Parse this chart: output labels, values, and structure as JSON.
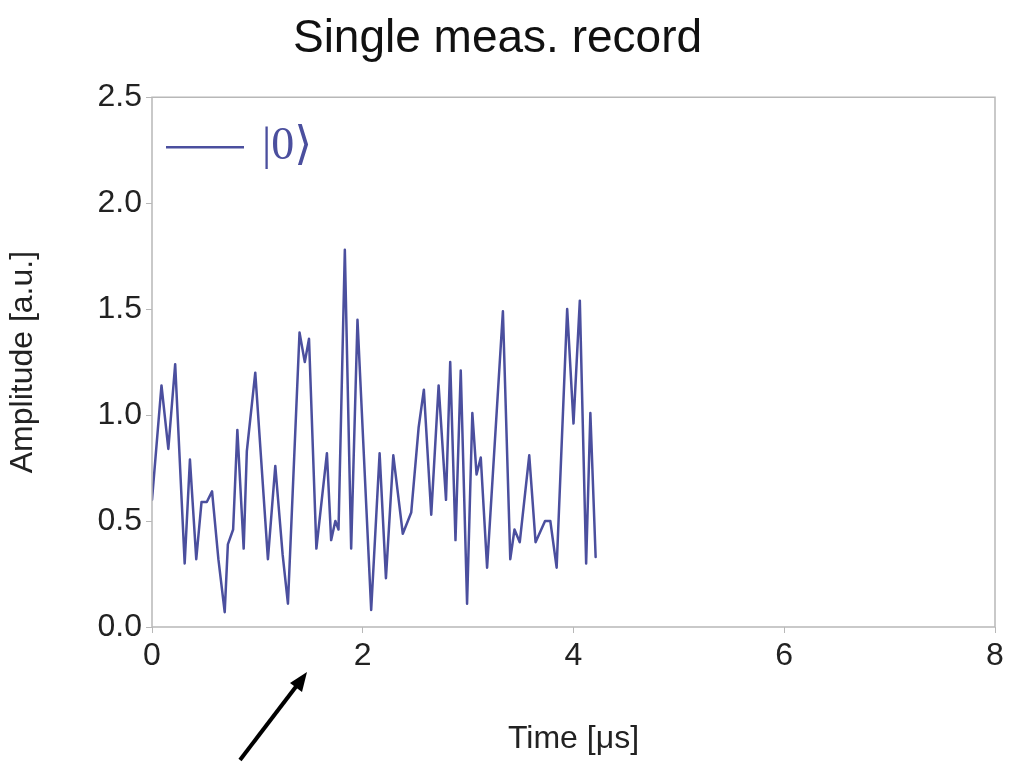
{
  "chart_data": {
    "type": "line",
    "title": "Single meas. record",
    "xlabel": "Time [μs]",
    "ylabel": "Amplitude [a.u.]",
    "xlim": [
      0,
      8
    ],
    "xticks": [
      0,
      2,
      4,
      6,
      8
    ],
    "ylim": [
      0,
      2.5
    ],
    "yticks": [
      {
        "value": 0,
        "label": "0.0"
      },
      0.5,
      {
        "value": 1,
        "label": "1.0"
      },
      1.5,
      {
        "value": 2,
        "label": "2.0"
      },
      2.5
    ],
    "grid": false,
    "legend": "top left",
    "marker": "none",
    "line_style": "solid",
    "x": [
      0,
      0.09,
      0.155,
      0.22,
      0.31,
      0.36,
      0.42,
      0.47,
      0.52,
      0.57,
      0.63,
      0.69,
      0.72,
      0.77,
      0.81,
      0.87,
      0.9,
      0.98,
      1.1,
      1.17,
      1.24,
      1.29,
      1.4,
      1.45,
      1.49,
      1.56,
      1.66,
      1.7,
      1.74,
      1.77,
      1.83,
      1.89,
      1.95,
      2.08,
      2.16,
      2.22,
      2.29,
      2.38,
      2.46,
      2.53,
      2.58,
      2.65,
      2.72,
      2.79,
      2.83,
      2.88,
      2.93,
      2.99,
      3.04,
      3.08,
      3.12,
      3.18,
      3.33,
      3.4,
      3.44,
      3.49,
      3.58,
      3.64,
      3.73,
      3.78,
      3.84,
      3.94,
      4.0,
      4.06,
      4.12,
      4.16,
      4.21
    ],
    "series": [
      {
        "name": "|0⟩",
        "color": "#4b4f9e",
        "values": [
          0.6,
          1.14,
          0.84,
          1.24,
          0.3,
          0.79,
          0.32,
          0.59,
          0.59,
          0.64,
          0.32,
          0.07,
          0.39,
          0.46,
          0.93,
          0.37,
          0.83,
          1.2,
          0.32,
          0.76,
          0.34,
          0.11,
          1.39,
          1.25,
          1.36,
          0.37,
          0.82,
          0.41,
          0.5,
          0.46,
          1.78,
          0.37,
          1.45,
          0.08,
          0.82,
          0.23,
          0.81,
          0.44,
          0.54,
          0.94,
          1.12,
          0.53,
          1.14,
          0.6,
          1.25,
          0.41,
          1.21,
          0.11,
          1.01,
          0.72,
          0.8,
          0.28,
          1.49,
          0.32,
          0.46,
          0.4,
          0.81,
          0.4,
          0.5,
          0.5,
          0.28,
          1.5,
          0.96,
          1.54,
          0.3,
          1.01,
          0.33
        ]
      }
    ]
  }
}
